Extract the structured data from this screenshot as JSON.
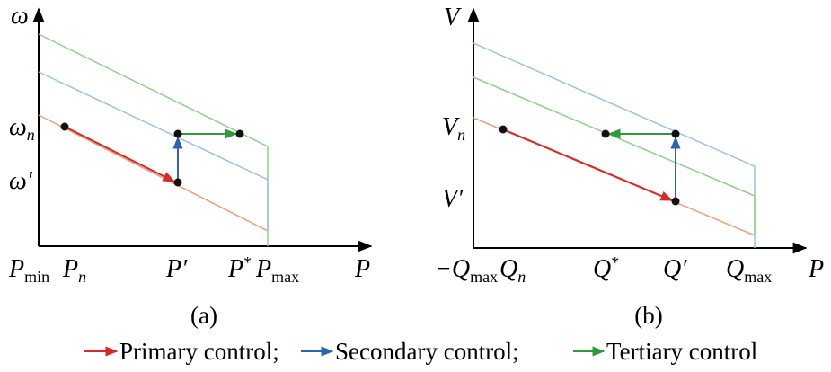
{
  "panel_a": {
    "y_axis": {
      "base": "ω"
    },
    "y_labels": [
      {
        "base": "ω",
        "sub": "n"
      },
      {
        "base": "ω′"
      }
    ],
    "x_labels": [
      {
        "base": "P",
        "sub": "min"
      },
      {
        "base": "P",
        "sub": "n"
      },
      {
        "base": "P′"
      },
      {
        "base": "P",
        "sup": "*"
      },
      {
        "base": "P",
        "sub": "max"
      }
    ],
    "x_axis": {
      "base": "P"
    },
    "caption": "(a)"
  },
  "panel_b": {
    "y_axis": {
      "base": "V"
    },
    "y_labels": [
      {
        "base": "V",
        "sub": "n"
      },
      {
        "base": "V′"
      }
    ],
    "x_labels": [
      {
        "base": "−Q",
        "sub": "max"
      },
      {
        "base": "Q",
        "sub": "n"
      },
      {
        "base": "Q",
        "sup": "*"
      },
      {
        "base": "Q′"
      },
      {
        "base": "Q",
        "sub": "max"
      }
    ],
    "x_axis": {
      "base": "P"
    },
    "caption": "(b)"
  },
  "legend": [
    "Primary control;",
    "Secondary control;",
    "Tertiary control"
  ]
}
